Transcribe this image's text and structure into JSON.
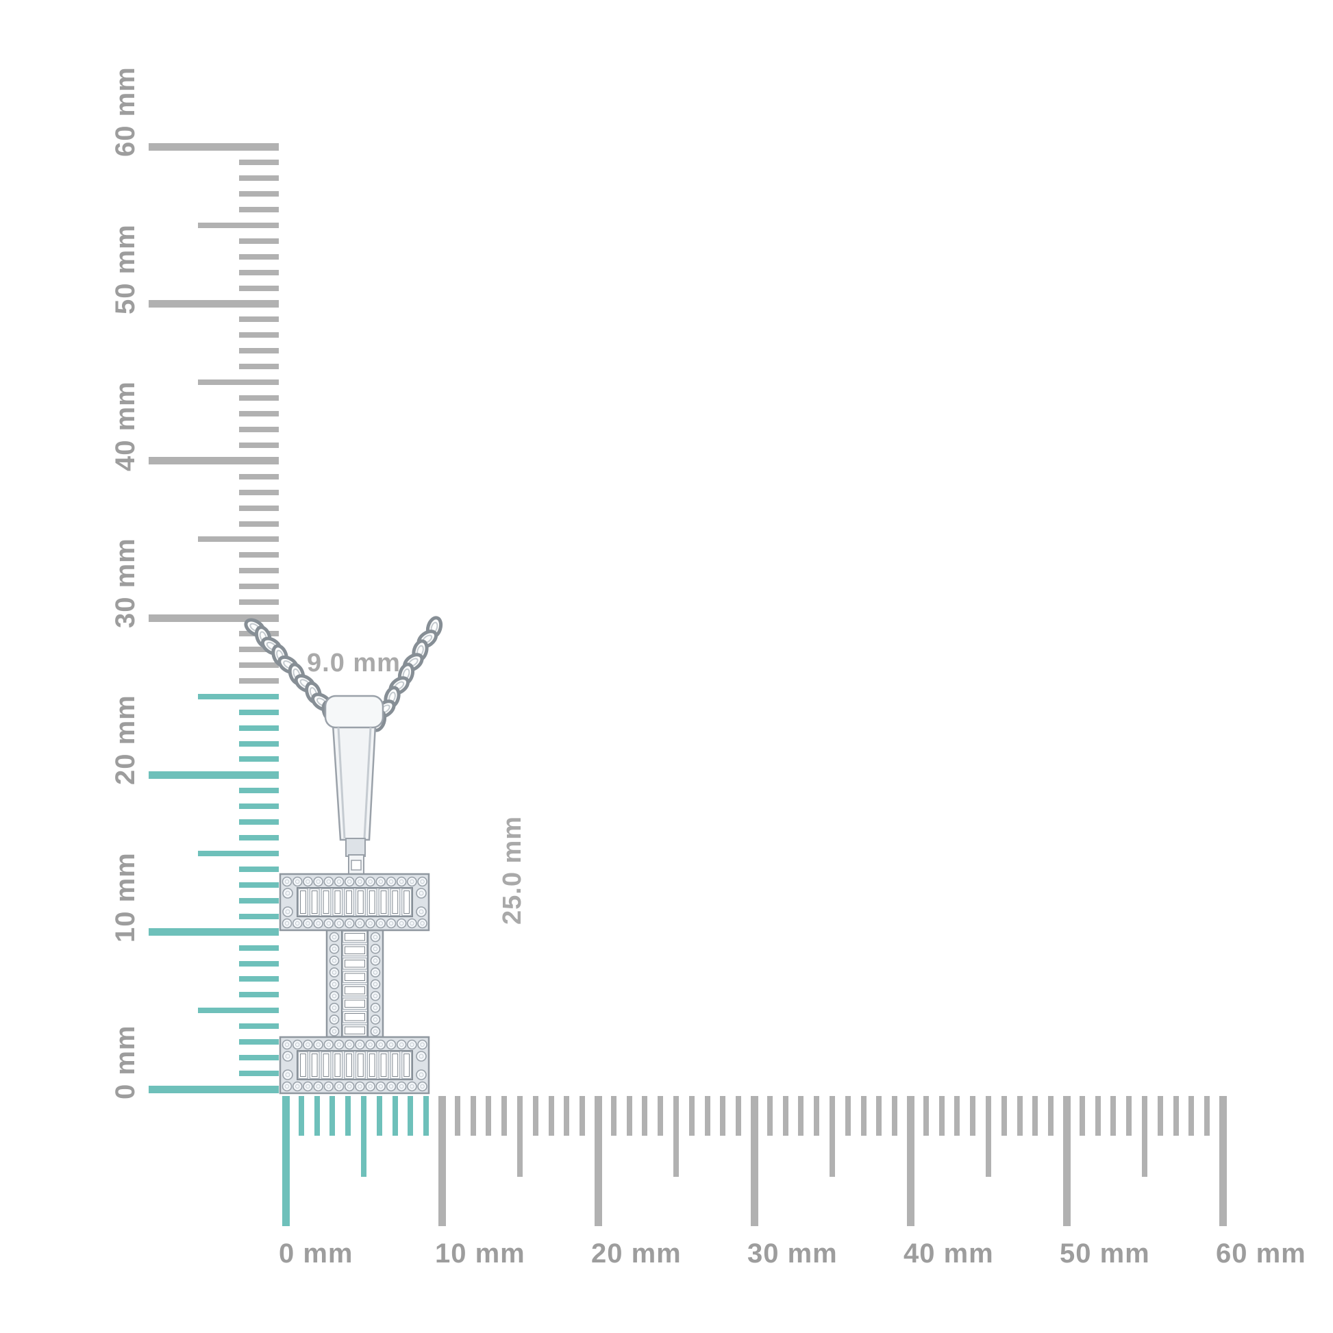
{
  "product": {
    "kind": "initial-letter-diamond-pendant-necklace",
    "letter": "I"
  },
  "dimension_labels": {
    "width": "9.0 mm",
    "height": "25.0 mm"
  },
  "rulers": {
    "unit": "mm",
    "colors": {
      "highlight": "#6ec0ba",
      "tick": "#b1b1b1",
      "label": "#9d9d9d",
      "dimension_label": "#a9a9a9"
    },
    "vertical": {
      "min_mm": 0,
      "max_mm": 60,
      "step_mm": 1,
      "highlight_to_mm": 25,
      "major_labels": [
        "0 mm",
        "10 mm",
        "20 mm",
        "30 mm",
        "40 mm",
        "50 mm",
        "60 mm"
      ]
    },
    "horizontal": {
      "min_mm": 0,
      "max_mm": 60,
      "step_mm": 1,
      "highlight_to_mm": 9,
      "major_labels": [
        "0 mm",
        "10 mm",
        "20 mm",
        "30 mm",
        "40 mm",
        "50 mm",
        "60 mm"
      ]
    }
  },
  "art_colors": {
    "metal_light": "#f2f4f6",
    "metal_mid": "#dde2e7",
    "metal_dark": "#9aa1a9",
    "stone_fill": "#f4f7fa",
    "stone_stroke": "#99a1a9",
    "chain_stroke": "#868e95"
  }
}
